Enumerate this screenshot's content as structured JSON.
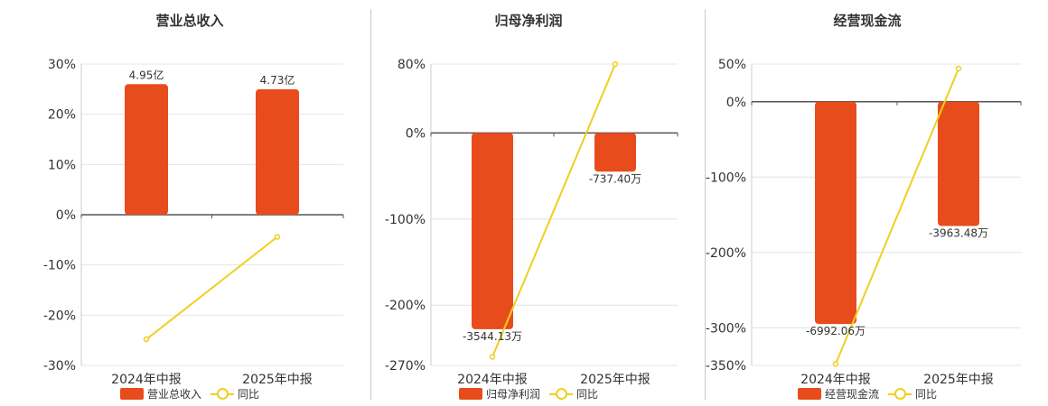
{
  "colors": {
    "bar": "#e84c1c",
    "line": "#f0cf1f",
    "grid": "#e4e4e4",
    "axis": "#555555"
  },
  "charts": [
    {
      "title": "营业总收入",
      "legend": {
        "bar": "营业总收入",
        "line": "同比"
      }
    },
    {
      "title": "归母净利润",
      "legend": {
        "bar": "归母净利润",
        "line": "同比"
      }
    },
    {
      "title": "经营现金流",
      "legend": {
        "bar": "经营现金流",
        "line": "同比"
      }
    }
  ],
  "chart_data": [
    {
      "type": "bar",
      "title": "营业总收入",
      "categories": [
        "2024年中报",
        "2025年中报"
      ],
      "ylim": [
        -30,
        30
      ],
      "ticks": [
        30,
        20,
        10,
        0,
        -10,
        -20,
        -30
      ],
      "tick_labels": [
        "30%",
        "20%",
        "10%",
        "0%",
        "-10%",
        "-20%",
        "-30%"
      ],
      "series": [
        {
          "name": "营业总收入",
          "kind": "bar",
          "values": [
            26.0,
            25.0
          ],
          "labels": [
            "4.95亿",
            "4.73亿"
          ]
        },
        {
          "name": "同比",
          "kind": "line",
          "values": [
            -24.8,
            -4.4
          ]
        }
      ]
    },
    {
      "type": "bar",
      "title": "归母净利润",
      "categories": [
        "2024年中报",
        "2025年中报"
      ],
      "ylim": [
        -270,
        80
      ],
      "ticks": [
        80,
        0,
        -100,
        -200,
        -270
      ],
      "tick_labels": [
        "80%",
        "0%",
        "-100%",
        "-200%",
        "-270%"
      ],
      "series": [
        {
          "name": "归母净利润",
          "kind": "bar",
          "values": [
            -228,
            -45
          ],
          "labels": [
            "-3544.13万",
            "-737.40万"
          ]
        },
        {
          "name": "同比",
          "kind": "line",
          "values": [
            -260,
            80
          ]
        }
      ]
    },
    {
      "type": "bar",
      "title": "经营现金流",
      "categories": [
        "2024年中报",
        "2025年中报"
      ],
      "ylim": [
        -350,
        50
      ],
      "ticks": [
        50,
        0,
        -100,
        -200,
        -300,
        -350
      ],
      "tick_labels": [
        "50%",
        "0%",
        "-100%",
        "-200%",
        "-300%",
        "-350%"
      ],
      "series": [
        {
          "name": "经营现金流",
          "kind": "bar",
          "values": [
            -295,
            -165
          ],
          "labels": [
            "-6992.06万",
            "-3963.48万"
          ]
        },
        {
          "name": "同比",
          "kind": "line",
          "values": [
            -348,
            44
          ]
        }
      ]
    }
  ]
}
